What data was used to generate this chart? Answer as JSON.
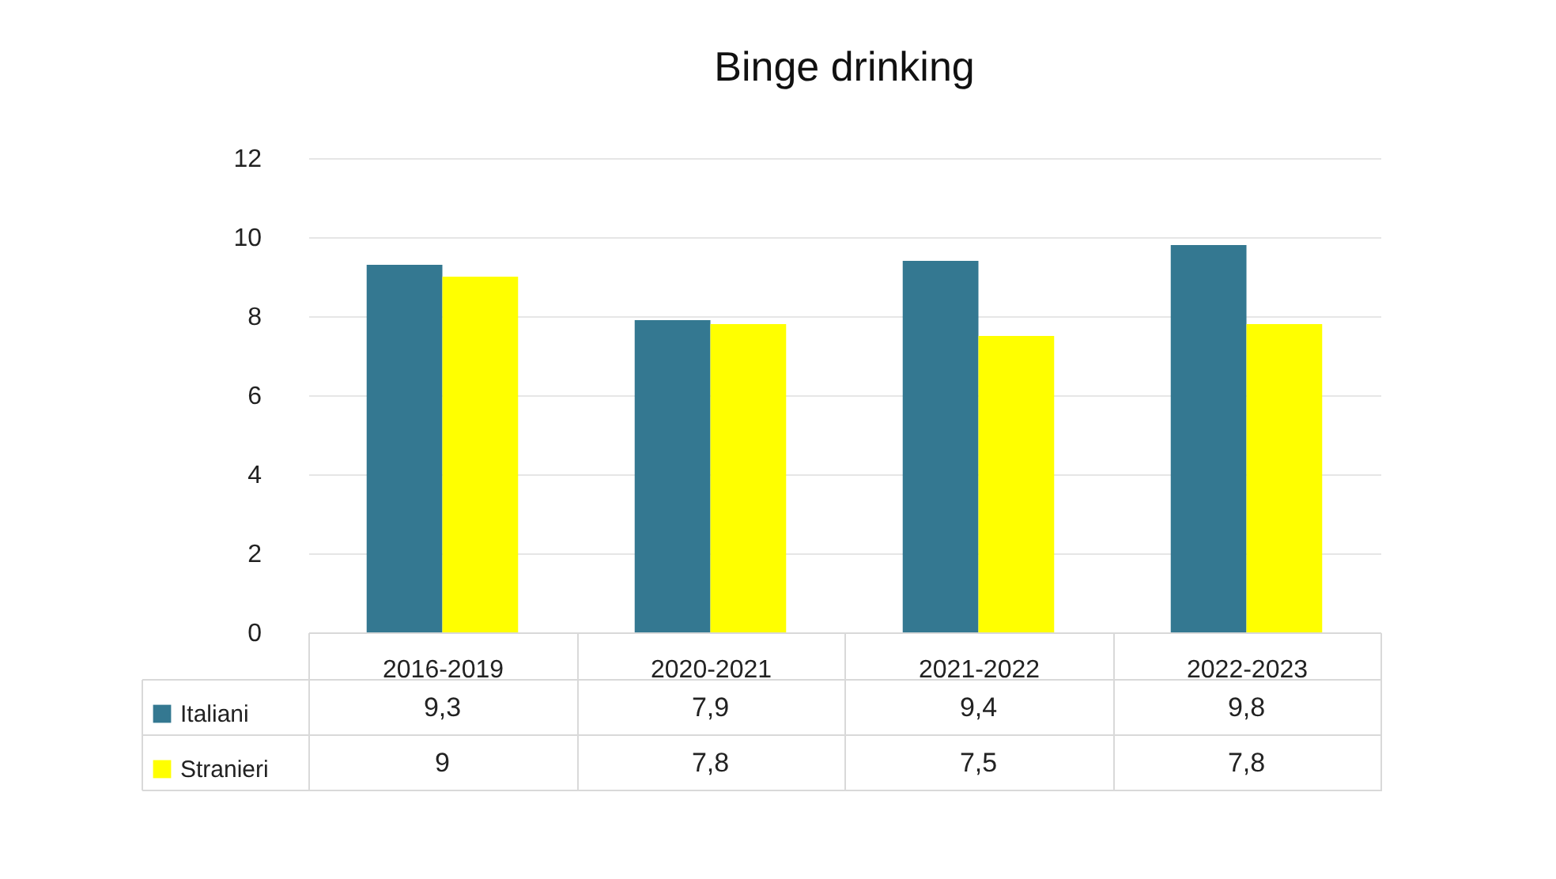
{
  "chart_data": {
    "type": "bar",
    "title": "Binge drinking",
    "categories": [
      "2016-2019",
      "2020-2021",
      "2021-2022",
      "2022-2023"
    ],
    "series": [
      {
        "name": "Italiani",
        "color": "#347891",
        "values": [
          9.3,
          7.9,
          9.4,
          9.8
        ],
        "value_labels": [
          "9,3",
          "7,9",
          "9,4",
          "9,8"
        ]
      },
      {
        "name": "Stranieri",
        "color": "#ffff00",
        "values": [
          9,
          7.8,
          7.5,
          7.8
        ],
        "value_labels": [
          "9",
          "7,8",
          "7,5",
          "7,8"
        ]
      }
    ],
    "ylim": [
      0,
      12
    ],
    "yticks": [
      0,
      2,
      4,
      6,
      8,
      10,
      12
    ],
    "grid": "y",
    "legend": "bottom",
    "data_labels": true
  }
}
